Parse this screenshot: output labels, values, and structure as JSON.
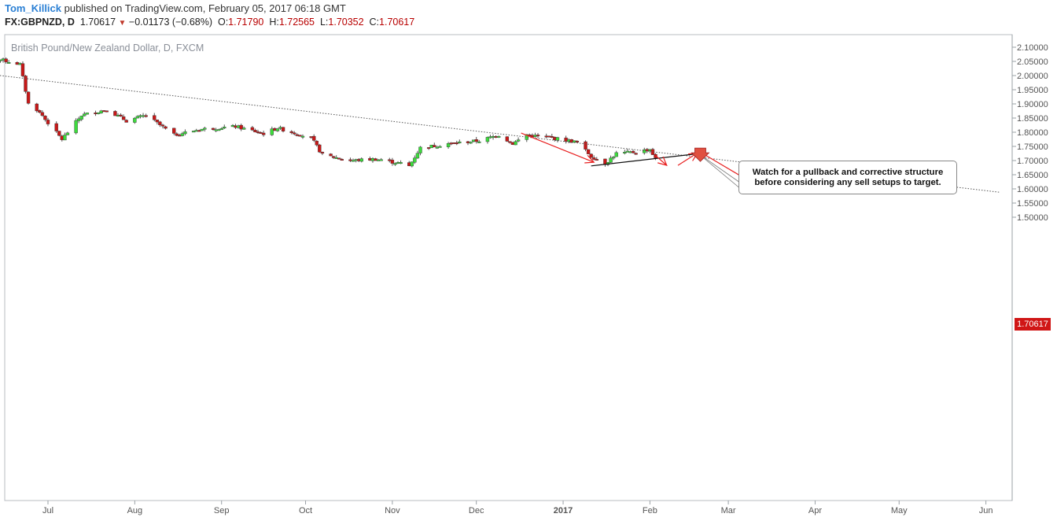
{
  "header": {
    "author": "Tom_Killick",
    "published_text": " published on TradingView.com, February 05, 2017 06:18 GMT",
    "symbol": "FX:GBPNZD, D",
    "last": "1.70617",
    "down_arrow": "▼",
    "change": "−0.01173 (−0.68%)",
    "o_label": "O:",
    "open": "1.71790",
    "h_label": "H:",
    "high": "1.72565",
    "l_label": "L:",
    "low": "1.70352",
    "c_label": "C:",
    "close": "1.70617"
  },
  "chart_data": {
    "type": "candlestick",
    "title": "British Pound/New Zealand Dollar, D, FXCM",
    "price_tag": "1.70617",
    "annotation": "Watch for a pullback and corrective structure before considering any sell setups to target.",
    "ylim": [
      1.455,
      2.115
    ],
    "y_ticks": [
      "2.10000",
      "2.05000",
      "2.00000",
      "1.95000",
      "1.90000",
      "1.85000",
      "1.80000",
      "1.75000",
      "1.70000",
      "1.65000",
      "1.60000",
      "1.55000",
      "1.50000"
    ],
    "x_ticks": [
      {
        "label": "Jul",
        "date": "2016-07-01"
      },
      {
        "label": "Aug",
        "date": "2016-08-01"
      },
      {
        "label": "Sep",
        "date": "2016-09-01"
      },
      {
        "label": "Oct",
        "date": "2016-10-01"
      },
      {
        "label": "Nov",
        "date": "2016-11-01"
      },
      {
        "label": "Dec",
        "date": "2016-12-01"
      },
      {
        "label": "2017",
        "date": "2017-01-01"
      },
      {
        "label": "Feb",
        "date": "2017-02-01"
      },
      {
        "label": "Mar",
        "date": "2017-03-01"
      },
      {
        "label": "Apr",
        "date": "2017-04-01"
      },
      {
        "label": "May",
        "date": "2017-05-01"
      },
      {
        "label": "Jun",
        "date": "2017-06-01"
      }
    ],
    "colors": {
      "up": "#3cdc3c",
      "down": "#c81818",
      "wick": "#555555",
      "trend": "#555555",
      "arrows": "#e82020",
      "support": "#111111"
    },
    "anchors": [
      [
        "2016-06-07",
        2.03
      ],
      [
        "2016-06-10",
        2.065
      ],
      [
        "2016-06-21",
        2.04
      ],
      [
        "2016-06-24",
        1.9
      ],
      [
        "2016-06-27",
        1.88
      ],
      [
        "2016-07-06",
        1.775
      ],
      [
        "2016-07-13",
        1.86
      ],
      [
        "2016-07-22",
        1.88
      ],
      [
        "2016-07-29",
        1.84
      ],
      [
        "2016-08-05",
        1.86
      ],
      [
        "2016-08-15",
        1.79
      ],
      [
        "2016-08-24",
        1.81
      ],
      [
        "2016-09-06",
        1.82
      ],
      [
        "2016-09-16",
        1.795
      ],
      [
        "2016-09-21",
        1.815
      ],
      [
        "2016-09-26",
        1.8
      ],
      [
        "2016-10-03",
        1.78
      ],
      [
        "2016-10-07",
        1.72
      ],
      [
        "2016-10-17",
        1.7
      ],
      [
        "2016-10-26",
        1.705
      ],
      [
        "2016-11-04",
        1.69
      ],
      [
        "2016-11-07",
        1.68
      ],
      [
        "2016-11-11",
        1.745
      ],
      [
        "2016-11-22",
        1.76
      ],
      [
        "2016-12-02",
        1.77
      ],
      [
        "2016-12-09",
        1.79
      ],
      [
        "2016-12-14",
        1.76
      ],
      [
        "2016-12-19",
        1.79
      ],
      [
        "2016-12-28",
        1.78
      ],
      [
        "2017-01-06",
        1.765
      ],
      [
        "2017-01-11",
        1.715
      ],
      [
        "2017-01-16",
        1.69
      ],
      [
        "2017-01-20",
        1.725
      ],
      [
        "2017-01-27",
        1.73
      ],
      [
        "2017-02-01",
        1.74
      ],
      [
        "2017-02-03",
        1.706
      ]
    ],
    "trendline": [
      [
        "2016-06-07",
        2.008
      ],
      [
        "2017-06-06",
        1.588
      ]
    ],
    "support_line": [
      [
        "2017-01-11",
        1.681
      ],
      [
        "2017-02-17",
        1.723
      ]
    ],
    "arrows": [
      [
        [
          "2016-12-17",
          1.797
        ],
        [
          "2017-01-12",
          1.694
        ]
      ],
      [
        [
          "2017-02-03",
          1.718
        ],
        [
          "2017-02-07",
          1.683
        ]
      ],
      [
        [
          "2017-02-11",
          1.683
        ],
        [
          "2017-02-18",
          1.727
        ]
      ],
      [
        [
          "2017-02-21",
          1.718
        ],
        [
          "2017-03-11",
          1.613
        ]
      ]
    ],
    "marker": [
      "2017-02-19",
      1.719
    ]
  }
}
